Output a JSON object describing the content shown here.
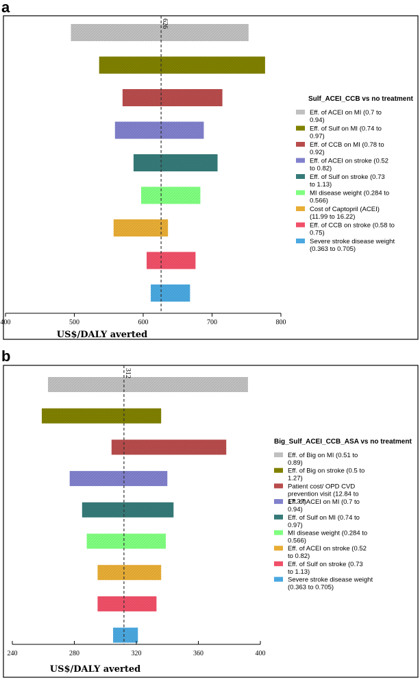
{
  "chart_data": [
    {
      "panel": "a",
      "type": "tornado",
      "legend_title": "Sulf_ACEI_CCB vs no treatment",
      "xlabel": "US$/DALY averted",
      "xlim": [
        400,
        800
      ],
      "xticks": [
        400,
        500,
        600,
        700,
        800
      ],
      "base_value": 626,
      "base_label": "626",
      "series": [
        {
          "name": "Eff. of ACEI on MI (0.7 to 0.94)",
          "low": 495,
          "high": 753,
          "color": "#c0c0c0"
        },
        {
          "name": "Eff. of Sulf on MI (0.74 to 0.97)",
          "low": 536,
          "high": 777,
          "color": "#808000"
        },
        {
          "name": "Eff. of CCB on MI (0.78 to 0.92)",
          "low": 570,
          "high": 715,
          "color": "#b84c4c"
        },
        {
          "name": "Eff. of ACEI on stroke (0.52 to 0.82)",
          "low": 559,
          "high": 688,
          "color": "#8080cc"
        },
        {
          "name": "Eff. of Sulf on stroke (0.73 to 1.13)",
          "low": 586,
          "high": 708,
          "color": "#357a78"
        },
        {
          "name": "MI disease weight (0.284 to 0.566)",
          "low": 597,
          "high": 683,
          "color": "#80ff80"
        },
        {
          "name": "Cost of Captopril (ACEI) (11.99 to 16.22)",
          "low": 557,
          "high": 636,
          "color": "#e8ad35"
        },
        {
          "name": "Eff. of CCB on stroke (0.58 to 0.75)",
          "low": 605,
          "high": 676,
          "color": "#f05068"
        },
        {
          "name": "Severe stroke disease weight (0.363 to 0.705)",
          "low": 611,
          "high": 668,
          "color": "#4aa8e0"
        }
      ]
    },
    {
      "panel": "b",
      "type": "tornado",
      "legend_title": "Big_Sulf_ACEI_CCB_ASA vs no treatment",
      "xlabel": "US$/DALY averted",
      "xlim": [
        240,
        400
      ],
      "xticks": [
        240,
        280,
        320,
        360,
        400
      ],
      "base_value": 312,
      "base_label": "312",
      "series": [
        {
          "name": "Eff. of Big on MI (0.51 to 0.89)",
          "low": 263,
          "high": 392,
          "color": "#c0c0c0"
        },
        {
          "name": "Eff. of Big on stroke (0.5 to 1.27)",
          "low": 259,
          "high": 336,
          "color": "#808000"
        },
        {
          "name": "Patient cost/ OPD CVD prevention visit (12.84 to 17.37)",
          "low": 304,
          "high": 378,
          "color": "#b84c4c"
        },
        {
          "name": "Eff. of ACEI on MI (0.7 to 0.94)",
          "low": 277,
          "high": 340,
          "color": "#8080cc"
        },
        {
          "name": "Eff. of Sulf on MI (0.74 to 0.97)",
          "low": 285,
          "high": 344,
          "color": "#357a78"
        },
        {
          "name": "MI disease weight (0.284 to 0.566)",
          "low": 288,
          "high": 339,
          "color": "#80ff80"
        },
        {
          "name": "Eff. of ACEI on stroke (0.52 to 0.82)",
          "low": 295,
          "high": 336,
          "color": "#e8ad35"
        },
        {
          "name": "Eff. of Sulf on stroke (0.73 to 1.13)",
          "low": 295,
          "high": 333,
          "color": "#f05068"
        },
        {
          "name": "Severe stroke disease weight (0.363 to 0.705)",
          "low": 305,
          "high": 321,
          "color": "#4aa8e0"
        }
      ]
    }
  ]
}
